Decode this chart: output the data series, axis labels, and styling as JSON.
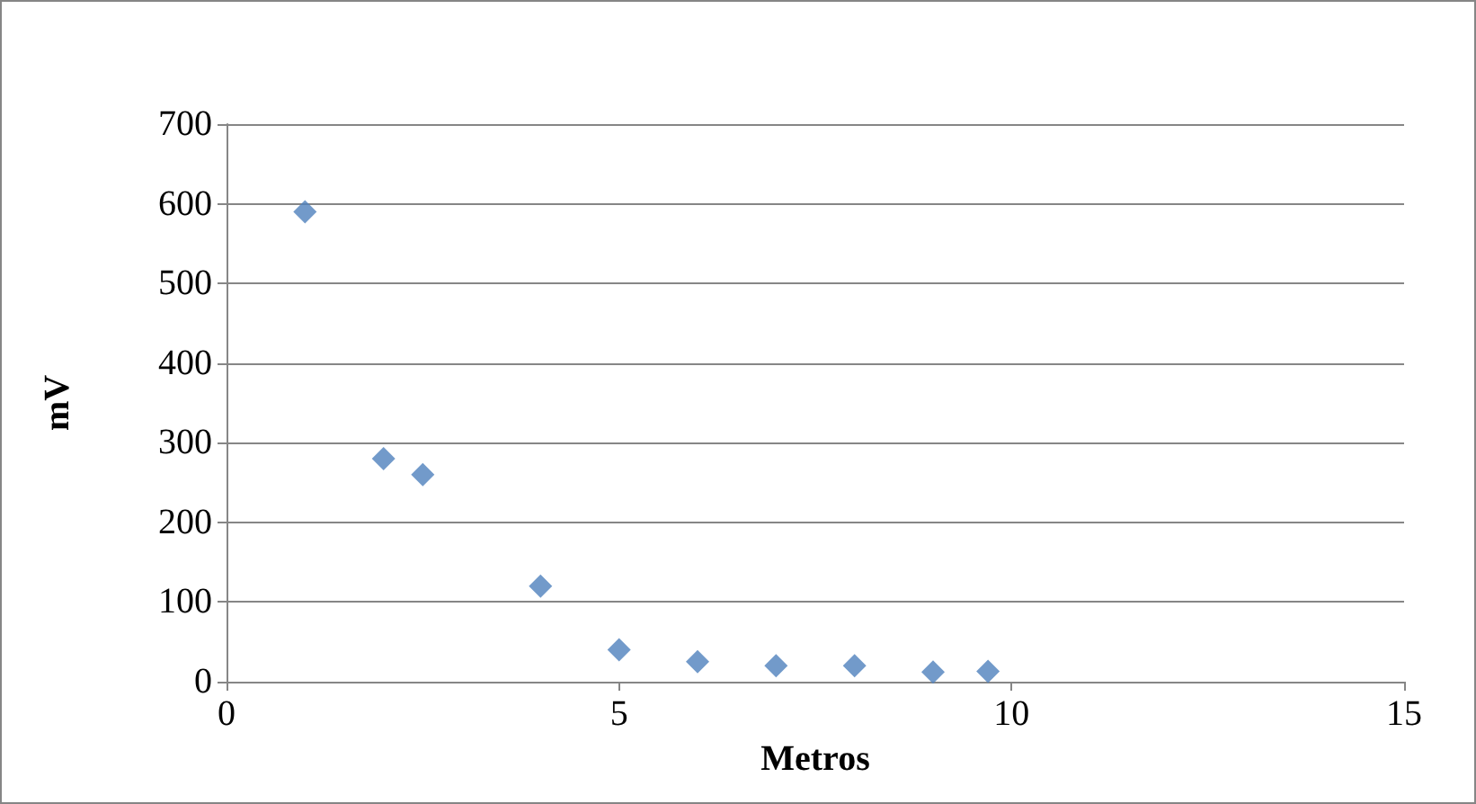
{
  "chart_data": {
    "type": "scatter",
    "xlabel": "Metros",
    "ylabel": "mV",
    "x": [
      1,
      2,
      2.5,
      4,
      5,
      6,
      7,
      8,
      9,
      9.7
    ],
    "values": [
      590,
      280,
      260,
      120,
      40,
      25,
      20,
      20,
      12,
      13
    ],
    "color": "#4f81bd",
    "marker": "diamond",
    "xlim": [
      0,
      15
    ],
    "xticks": [
      0,
      5,
      10,
      15
    ],
    "ylim": [
      0,
      700
    ],
    "yticks": [
      0,
      100,
      200,
      300,
      400,
      500,
      600,
      700
    ],
    "grid": "y"
  }
}
